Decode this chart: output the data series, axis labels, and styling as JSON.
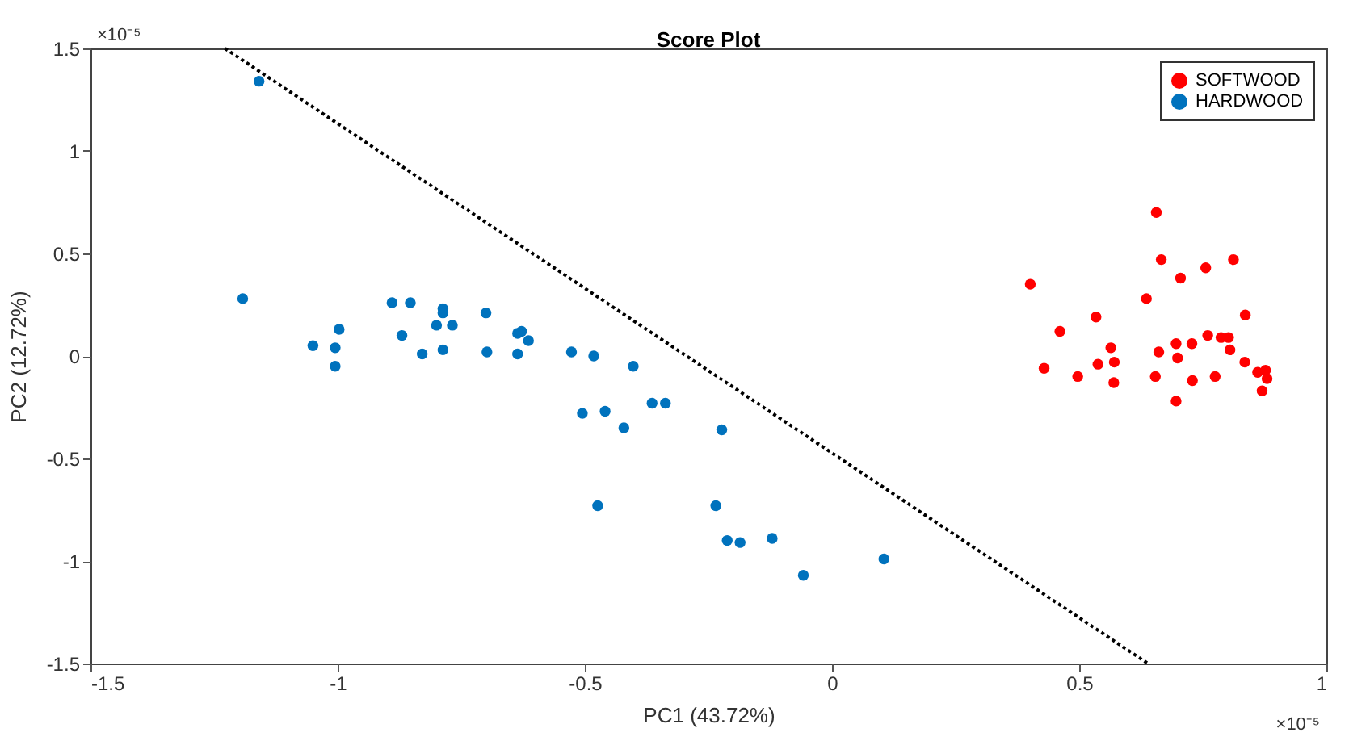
{
  "chart_data": {
    "type": "scatter",
    "title": "Score Plot",
    "xlabel": "PC1 (43.72%)",
    "ylabel": "PC2 (12.72%)",
    "xlim": [
      -1.5,
      1
    ],
    "xticks": [
      -1.5,
      -1,
      -0.5,
      0,
      0.5,
      1
    ],
    "ylim": [
      -1.5,
      1.5
    ],
    "yticks": [
      -1.5,
      -1,
      -0.5,
      0,
      0.5,
      1,
      1.5
    ],
    "grid": false,
    "legend": "top right",
    "marker": "circle",
    "annotations": [
      "×10⁻⁵",
      "×10⁻⁵"
    ],
    "series": [
      {
        "name": "SOFTWOOD",
        "color": "#ff0000",
        "x": [
          0.656,
          0.666,
          0.812,
          0.756,
          0.705,
          0.401,
          0.636,
          0.836,
          0.534,
          0.461,
          0.76,
          0.787,
          0.802,
          0.696,
          0.728,
          0.564,
          0.805,
          0.661,
          0.699,
          0.538,
          0.571,
          0.835,
          0.429,
          0.497,
          0.654,
          0.729,
          0.775,
          0.57,
          0.861,
          0.877,
          0.88,
          0.87,
          0.696
        ],
        "values": [
          0.7,
          0.47,
          0.47,
          0.43,
          0.38,
          0.35,
          0.28,
          0.2,
          0.19,
          0.12,
          0.1,
          0.09,
          0.09,
          0.06,
          0.06,
          0.04,
          0.03,
          0.02,
          -0.01,
          -0.04,
          -0.03,
          -0.03,
          -0.06,
          -0.1,
          -0.1,
          -0.12,
          -0.1,
          -0.13,
          -0.08,
          -0.07,
          -0.11,
          -0.17,
          -0.22
        ]
      },
      {
        "name": "HARDWOOD",
        "color": "#0072bd",
        "x": [
          -1.159,
          -1.192,
          -0.89,
          -0.853,
          -0.787,
          -0.787,
          -0.7,
          -0.997,
          -0.8,
          -0.768,
          -0.87,
          -0.628,
          -0.636,
          -0.614,
          -1.05,
          -1.005,
          -0.829,
          -0.787,
          -0.698,
          -0.636,
          -0.527,
          -0.482,
          -1.005,
          -0.505,
          -0.459,
          -0.402,
          -0.364,
          -0.337,
          -0.421,
          -0.223,
          -0.474,
          -0.235,
          -0.212,
          -0.186,
          -0.121,
          -0.058,
          0.105
        ],
        "values": [
          1.34,
          0.28,
          0.26,
          0.26,
          0.23,
          0.21,
          0.21,
          0.13,
          0.15,
          0.15,
          0.1,
          0.12,
          0.11,
          0.075,
          0.05,
          0.04,
          0.01,
          0.03,
          0.02,
          0.01,
          0.02,
          0,
          -0.05,
          -0.28,
          -0.27,
          -0.05,
          -0.23,
          -0.23,
          -0.35,
          -0.36,
          -0.73,
          -0.73,
          -0.9,
          -0.91,
          -0.89,
          -1.07,
          -0.99
        ]
      },
      {
        "type": "line",
        "color": "#000000",
        "line_style": "dotted",
        "marker": "none",
        "x": [
          -1.228,
          0.639
        ],
        "values": [
          1.5,
          -1.5
        ]
      }
    ]
  }
}
